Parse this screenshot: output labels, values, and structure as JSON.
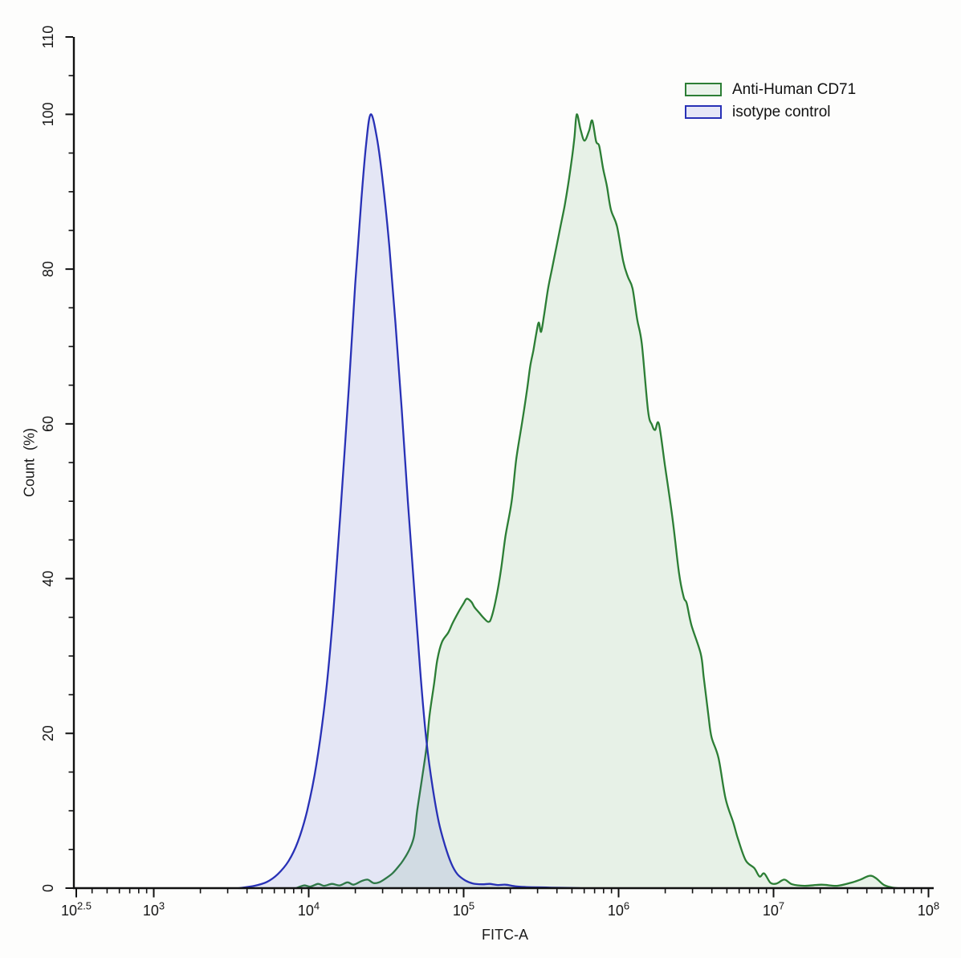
{
  "chart_data": {
    "type": "area",
    "subtype": "flow-cytometry-overlay-histogram",
    "title": "",
    "xlabel": "FITC-A",
    "ylabel": "Count  (%)",
    "x_scale": "log10",
    "xlim_log10": [
      2.5,
      8.0
    ],
    "ylim": [
      0,
      110
    ],
    "x_major_tick_exponents": [
      "2.5",
      "3",
      "4",
      "5",
      "6",
      "7",
      "8"
    ],
    "x_tick_base": "10",
    "x_minor_ticks": "log decades 2-9 per decade",
    "y_major_ticks": [
      0,
      20,
      40,
      60,
      80,
      100,
      110
    ],
    "y_minor_step": 5,
    "grid": false,
    "axis_color": "#111111",
    "background_color": "#fdfdfc",
    "legend": {
      "position": "top-right-inside",
      "entries": [
        {
          "label": "Anti-Human CD71",
          "stroke": "#2c7e35",
          "fill": "#eaf3eb"
        },
        {
          "label": "isotype control",
          "stroke": "#2831b6",
          "fill": "#e6e7f7"
        }
      ]
    },
    "series": [
      {
        "name": "Anti-Human CD71",
        "stroke": "#2c7e35",
        "fill": "rgba(85,160,95,0.13)",
        "peak_summary": "main peak ~100% at ~5.5e5; left shoulder ~37% at 1e5; tail bump ~1.6% at ~4e7",
        "points": [
          [
            3.92,
            0
          ],
          [
            3.97,
            0.35
          ],
          [
            4.01,
            0.2
          ],
          [
            4.06,
            0.55
          ],
          [
            4.1,
            0.3
          ],
          [
            4.15,
            0.55
          ],
          [
            4.2,
            0.35
          ],
          [
            4.25,
            0.75
          ],
          [
            4.29,
            0.45
          ],
          [
            4.34,
            0.9
          ],
          [
            4.38,
            1.1
          ],
          [
            4.42,
            0.65
          ],
          [
            4.46,
            0.8
          ],
          [
            4.5,
            1.3
          ],
          [
            4.54,
            1.9
          ],
          [
            4.58,
            2.8
          ],
          [
            4.61,
            3.6
          ],
          [
            4.65,
            5.0
          ],
          [
            4.68,
            6.7
          ],
          [
            4.7,
            10
          ],
          [
            4.73,
            14
          ],
          [
            4.76,
            18.2
          ],
          [
            4.78,
            22.3
          ],
          [
            4.81,
            26.5
          ],
          [
            4.83,
            29.5
          ],
          [
            4.86,
            31.8
          ],
          [
            4.9,
            33
          ],
          [
            4.93,
            34.3
          ],
          [
            4.97,
            35.8
          ],
          [
            5.0,
            36.8
          ],
          [
            5.02,
            37.4
          ],
          [
            5.05,
            37
          ],
          [
            5.07,
            36.3
          ],
          [
            5.1,
            35.6
          ],
          [
            5.13,
            34.9
          ],
          [
            5.16,
            34.4
          ],
          [
            5.18,
            35
          ],
          [
            5.21,
            37.5
          ],
          [
            5.24,
            41
          ],
          [
            5.27,
            45.5
          ],
          [
            5.31,
            50
          ],
          [
            5.34,
            55.5
          ],
          [
            5.38,
            60.5
          ],
          [
            5.41,
            64.5
          ],
          [
            5.43,
            67.5
          ],
          [
            5.45,
            69.5
          ],
          [
            5.47,
            71.8
          ],
          [
            5.485,
            73.1
          ],
          [
            5.5,
            71.9
          ],
          [
            5.52,
            74.2
          ],
          [
            5.545,
            77.5
          ],
          [
            5.57,
            80
          ],
          [
            5.6,
            83
          ],
          [
            5.625,
            85.5
          ],
          [
            5.65,
            88
          ],
          [
            5.675,
            91
          ],
          [
            5.7,
            94.5
          ],
          [
            5.715,
            97
          ],
          [
            5.73,
            100
          ],
          [
            5.755,
            98
          ],
          [
            5.78,
            96.6
          ],
          [
            5.81,
            97.9
          ],
          [
            5.83,
            99.2
          ],
          [
            5.855,
            96.5
          ],
          [
            5.875,
            95.9
          ],
          [
            5.9,
            93
          ],
          [
            5.925,
            90.7
          ],
          [
            5.95,
            87.7
          ],
          [
            5.99,
            85.5
          ],
          [
            6.03,
            81
          ],
          [
            6.06,
            79
          ],
          [
            6.09,
            77.5
          ],
          [
            6.12,
            73.5
          ],
          [
            6.15,
            70.3
          ],
          [
            6.19,
            61.7
          ],
          [
            6.215,
            59.9
          ],
          [
            6.235,
            59.2
          ],
          [
            6.26,
            60
          ],
          [
            6.3,
            54.5
          ],
          [
            6.35,
            47.5
          ],
          [
            6.39,
            40.7
          ],
          [
            6.42,
            37.6
          ],
          [
            6.44,
            36.8
          ],
          [
            6.47,
            34
          ],
          [
            6.53,
            30.3
          ],
          [
            6.55,
            27.2
          ],
          [
            6.58,
            22.3
          ],
          [
            6.6,
            19.5
          ],
          [
            6.645,
            16.8
          ],
          [
            6.69,
            11.6
          ],
          [
            6.74,
            8.5
          ],
          [
            6.77,
            6.4
          ],
          [
            6.82,
            3.6
          ],
          [
            6.875,
            2.6
          ],
          [
            6.91,
            1.5
          ],
          [
            6.94,
            1.9
          ],
          [
            6.98,
            0.7
          ],
          [
            7.02,
            0.6
          ],
          [
            7.07,
            1.1
          ],
          [
            7.12,
            0.5
          ],
          [
            7.2,
            0.3
          ],
          [
            7.31,
            0.45
          ],
          [
            7.41,
            0.3
          ],
          [
            7.5,
            0.7
          ],
          [
            7.56,
            1.1
          ],
          [
            7.62,
            1.6
          ],
          [
            7.66,
            1.3
          ],
          [
            7.71,
            0.45
          ],
          [
            7.76,
            0.1
          ],
          [
            7.8,
            0
          ]
        ]
      },
      {
        "name": "isotype control",
        "stroke": "#2831b6",
        "fill": "rgba(70,80,200,0.135)",
        "peak_summary": "single peak ~100% at ~2.5e4",
        "points": [
          [
            3.55,
            0
          ],
          [
            3.65,
            0.3
          ],
          [
            3.73,
            0.8
          ],
          [
            3.8,
            1.8
          ],
          [
            3.87,
            3.5
          ],
          [
            3.93,
            6
          ],
          [
            3.99,
            10
          ],
          [
            4.05,
            16
          ],
          [
            4.11,
            25
          ],
          [
            4.16,
            36
          ],
          [
            4.21,
            50
          ],
          [
            4.26,
            65
          ],
          [
            4.3,
            78
          ],
          [
            4.34,
            89
          ],
          [
            4.37,
            96
          ],
          [
            4.4,
            100
          ],
          [
            4.44,
            97
          ],
          [
            4.48,
            91
          ],
          [
            4.52,
            83
          ],
          [
            4.56,
            73
          ],
          [
            4.6,
            62
          ],
          [
            4.64,
            50
          ],
          [
            4.68,
            39
          ],
          [
            4.72,
            28
          ],
          [
            4.76,
            19
          ],
          [
            4.8,
            13
          ],
          [
            4.84,
            8.5
          ],
          [
            4.88,
            5.5
          ],
          [
            4.92,
            3.2
          ],
          [
            4.96,
            1.8
          ],
          [
            5.01,
            1.0
          ],
          [
            5.06,
            0.6
          ],
          [
            5.12,
            0.5
          ],
          [
            5.17,
            0.55
          ],
          [
            5.22,
            0.4
          ],
          [
            5.27,
            0.45
          ],
          [
            5.33,
            0.25
          ],
          [
            5.4,
            0.15
          ],
          [
            5.5,
            0.1
          ],
          [
            5.62,
            0.05
          ],
          [
            5.75,
            0
          ]
        ]
      }
    ]
  }
}
